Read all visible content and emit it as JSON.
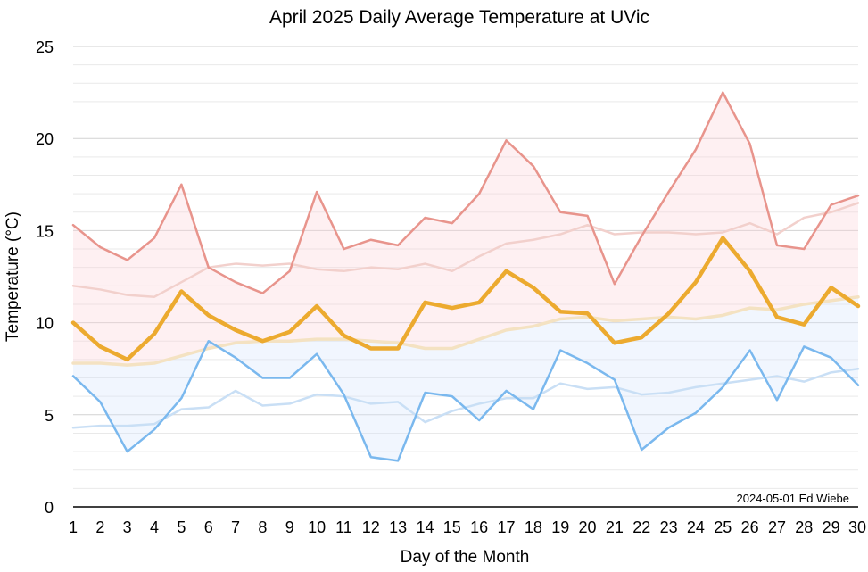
{
  "chart_data": {
    "type": "line",
    "title": "April 2025 Daily Average Temperature at UVic",
    "xlabel": "Day of the Month",
    "ylabel": "Temperature (°C)",
    "credit": "2024-05-01 Ed Wiebe",
    "x": [
      1,
      2,
      3,
      4,
      5,
      6,
      7,
      8,
      9,
      10,
      11,
      12,
      13,
      14,
      15,
      16,
      17,
      18,
      19,
      20,
      21,
      22,
      23,
      24,
      25,
      26,
      27,
      28,
      29,
      30
    ],
    "xlim": [
      1,
      30
    ],
    "ylim": [
      0,
      25
    ],
    "yticks": [
      0,
      5,
      10,
      15,
      20,
      25
    ],
    "grid": true,
    "legend": "none",
    "series": [
      {
        "role": "max",
        "color": "#e8948c",
        "values": [
          15.3,
          14.1,
          13.4,
          14.6,
          17.5,
          13.0,
          12.2,
          11.6,
          12.8,
          17.1,
          14.0,
          14.5,
          14.2,
          15.7,
          15.4,
          17.0,
          19.9,
          18.5,
          16.0,
          15.8,
          12.1,
          14.7,
          17.1,
          19.4,
          22.5,
          19.7,
          14.2,
          14.0,
          16.4,
          16.9
        ]
      },
      {
        "role": "mean",
        "color": "#ecaa2f",
        "values": [
          10.0,
          8.7,
          8.0,
          9.4,
          11.7,
          10.4,
          9.6,
          9.0,
          9.5,
          10.9,
          9.3,
          8.6,
          8.6,
          11.1,
          10.8,
          11.1,
          12.8,
          11.9,
          10.6,
          10.5,
          8.9,
          9.2,
          10.5,
          12.2,
          14.6,
          12.8,
          10.3,
          9.9,
          11.9,
          10.9
        ]
      },
      {
        "role": "min",
        "color": "#7ab8ee",
        "values": [
          7.1,
          5.7,
          3.0,
          4.2,
          5.9,
          9.0,
          8.1,
          7.0,
          7.0,
          8.3,
          6.1,
          2.7,
          2.5,
          6.2,
          6.0,
          4.7,
          6.3,
          5.3,
          8.5,
          7.8,
          6.9,
          3.1,
          4.3,
          5.1,
          6.5,
          8.5,
          5.8,
          8.7,
          8.1,
          6.6
        ]
      },
      {
        "role": "normal-max",
        "color": "#f2d0cc",
        "values": [
          12.0,
          11.8,
          11.5,
          11.4,
          12.2,
          13.0,
          13.2,
          13.1,
          13.2,
          12.9,
          12.8,
          13.0,
          12.9,
          13.2,
          12.8,
          13.6,
          14.3,
          14.5,
          14.8,
          15.3,
          14.8,
          14.9,
          14.9,
          14.8,
          14.9,
          15.4,
          14.8,
          15.7,
          16.0,
          16.5
        ]
      },
      {
        "role": "normal-mean",
        "color": "#f4e2c2",
        "values": [
          7.8,
          7.8,
          7.7,
          7.8,
          8.2,
          8.6,
          8.9,
          9.0,
          9.0,
          9.1,
          9.1,
          9.0,
          8.9,
          8.6,
          8.6,
          9.1,
          9.6,
          9.8,
          10.2,
          10.3,
          10.1,
          10.2,
          10.3,
          10.2,
          10.4,
          10.8,
          10.7,
          11.0,
          11.2,
          11.4
        ]
      },
      {
        "role": "normal-min",
        "color": "#c9dff5",
        "values": [
          4.3,
          4.4,
          4.4,
          4.5,
          5.3,
          5.4,
          6.3,
          5.5,
          5.6,
          6.1,
          6.0,
          5.6,
          5.7,
          4.6,
          5.2,
          5.6,
          5.9,
          5.9,
          6.7,
          6.4,
          6.5,
          6.1,
          6.2,
          6.5,
          6.7,
          6.9,
          7.1,
          6.8,
          7.3,
          7.5
        ]
      }
    ]
  }
}
